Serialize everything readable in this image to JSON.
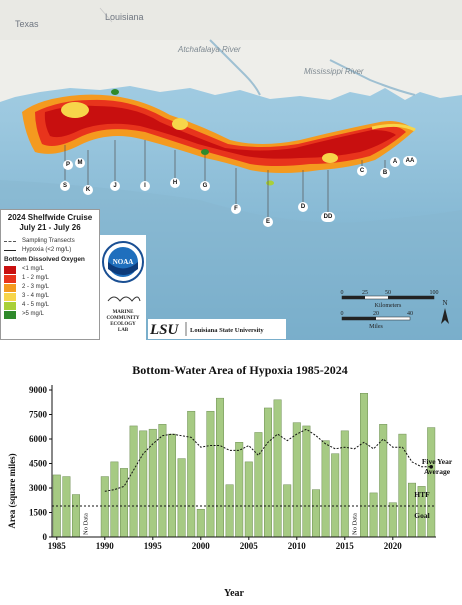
{
  "map": {
    "place_labels": {
      "texas": "Texas",
      "louisiana": "Louisiana",
      "atchafalaya": "Atchafalaya River",
      "mississippi": "Mississippi River"
    },
    "transects": [
      "S",
      "K",
      "J",
      "I",
      "H",
      "G",
      "F",
      "E",
      "D",
      "DD",
      "C",
      "B",
      "A",
      "AA",
      "P",
      "M"
    ],
    "legend": {
      "title_line1": "2024 Shelfwide Cruise",
      "title_line2": "July 21 - July 26",
      "sampling": "Sampling Transects",
      "hypoxia": "Hypoxia (<2 mg/L)",
      "do_title": "Bottom Dissolved Oxygen",
      "classes": [
        {
          "label": "<1 mg/L",
          "color": "#c80f0f"
        },
        {
          "label": "1 - 2 mg/L",
          "color": "#e8341c"
        },
        {
          "label": "2 - 3 mg/L",
          "color": "#f49a1f"
        },
        {
          "label": "3 - 4 mg/L",
          "color": "#f7d54a"
        },
        {
          "label": "4 - 5 mg/L",
          "color": "#a9d038"
        },
        {
          "label": ">5 mg/L",
          "color": "#2f8a2c"
        }
      ]
    },
    "logos": {
      "noaa": "NOAA",
      "mcel_1": "MARINE",
      "mcel_2": "COMMUNITY",
      "mcel_3": "ECOLOGY",
      "mcel_4": "LAB",
      "lsu_mark": "LSU",
      "lsu_name": "Louisiana State University"
    },
    "scale": {
      "km_ticks": [
        "0",
        "25",
        "50",
        "100"
      ],
      "km_label": "Kilometers",
      "mi_ticks": [
        "0",
        "20",
        "40"
      ],
      "mi_label": "Miles",
      "north": "N"
    }
  },
  "chart_data": {
    "type": "bar",
    "title": "Bottom-Water Area of Hypoxia 1985-2024",
    "xlabel": "Year",
    "ylabel": "Area (square miles)",
    "ylim": [
      0,
      9000
    ],
    "yticks": [
      0,
      1500,
      3000,
      4500,
      6000,
      7500,
      9000
    ],
    "xticks": [
      1985,
      1990,
      1995,
      2000,
      2005,
      2010,
      2015,
      2020
    ],
    "bar_color": "#a6ca83",
    "years": [
      1985,
      1986,
      1987,
      1988,
      1989,
      1990,
      1991,
      1992,
      1993,
      1994,
      1995,
      1996,
      1997,
      1998,
      1999,
      2000,
      2001,
      2002,
      2003,
      2004,
      2005,
      2006,
      2007,
      2008,
      2009,
      2010,
      2011,
      2012,
      2013,
      2014,
      2015,
      2016,
      2017,
      2018,
      2019,
      2020,
      2021,
      2022,
      2023,
      2024
    ],
    "values": [
      3800,
      3700,
      2600,
      null,
      null,
      3700,
      4600,
      4200,
      6800,
      6500,
      6600,
      6900,
      6300,
      4800,
      7700,
      1700,
      7700,
      8500,
      3200,
      5800,
      4600,
      6400,
      7900,
      8400,
      3200,
      7000,
      6800,
      2900,
      5900,
      5100,
      6500,
      null,
      8800,
      2700,
      6900,
      2100,
      6300,
      3300,
      3100,
      6700
    ],
    "no_data": [
      {
        "year": 1988,
        "label": "No Data"
      },
      {
        "year": 2016,
        "label": "No Data"
      }
    ],
    "five_year_average": {
      "label_line1": "Five Year",
      "label_line2": "Average",
      "years": [
        1990,
        1991,
        1992,
        1993,
        1994,
        1995,
        1996,
        1997,
        1998,
        1999,
        2000,
        2001,
        2002,
        2003,
        2004,
        2005,
        2006,
        2007,
        2008,
        2009,
        2010,
        2011,
        2012,
        2013,
        2014,
        2015,
        2016,
        2017,
        2018,
        2019,
        2020,
        2021,
        2022,
        2023,
        2024
      ],
      "values": [
        2800,
        2900,
        3100,
        4100,
        5100,
        5700,
        6200,
        6300,
        6200,
        6100,
        5500,
        5600,
        5600,
        5300,
        5300,
        5600,
        5000,
        5800,
        6300,
        5900,
        6300,
        6600,
        6200,
        5700,
        5400,
        5500,
        5400,
        5800,
        5400,
        6000,
        5500,
        5500,
        4600,
        4300,
        4300
      ]
    },
    "htf_goal": {
      "value": 1900,
      "label_line1": "HTF",
      "label_line2": "Goal"
    }
  }
}
